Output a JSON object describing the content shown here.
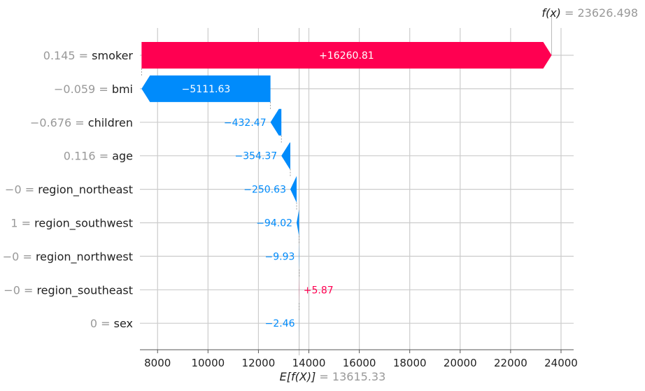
{
  "chart_data": {
    "type": "waterfall",
    "title": "",
    "xlim": [
      7300,
      24500
    ],
    "x_ticks": [
      8000,
      10000,
      12000,
      14000,
      16000,
      18000,
      20000,
      22000,
      24000
    ],
    "base_value": 13615.33,
    "base_label": "E[f(X)]",
    "base_value_text": "= 13615.33",
    "output_value": 23626.498,
    "output_label": "f(x)",
    "output_value_text": "= 23626.498",
    "positive_color": "#ff0051",
    "negative_color": "#008bfb",
    "features": [
      {
        "value_text": "0.145 =",
        "name": "smoker",
        "shap": 16260.81,
        "label": "+16260.81"
      },
      {
        "value_text": "−0.059 =",
        "name": "bmi",
        "shap": -5111.63,
        "label": "−5111.63"
      },
      {
        "value_text": "−0.676 =",
        "name": "children",
        "shap": -432.47,
        "label": "−432.47"
      },
      {
        "value_text": "0.116 =",
        "name": "age",
        "shap": -354.37,
        "label": "−354.37"
      },
      {
        "value_text": "−0 =",
        "name": "region_northeast",
        "shap": -250.63,
        "label": "−250.63"
      },
      {
        "value_text": "1 =",
        "name": "region_southwest",
        "shap": -94.02,
        "label": "−94.02"
      },
      {
        "value_text": "−0 =",
        "name": "region_northwest",
        "shap": -9.93,
        "label": "−9.93"
      },
      {
        "value_text": "−0 =",
        "name": "region_southeast",
        "shap": 5.87,
        "label": "+5.87"
      },
      {
        "value_text": "0 =",
        "name": "sex",
        "shap": -2.46,
        "label": "−2.46"
      }
    ]
  }
}
